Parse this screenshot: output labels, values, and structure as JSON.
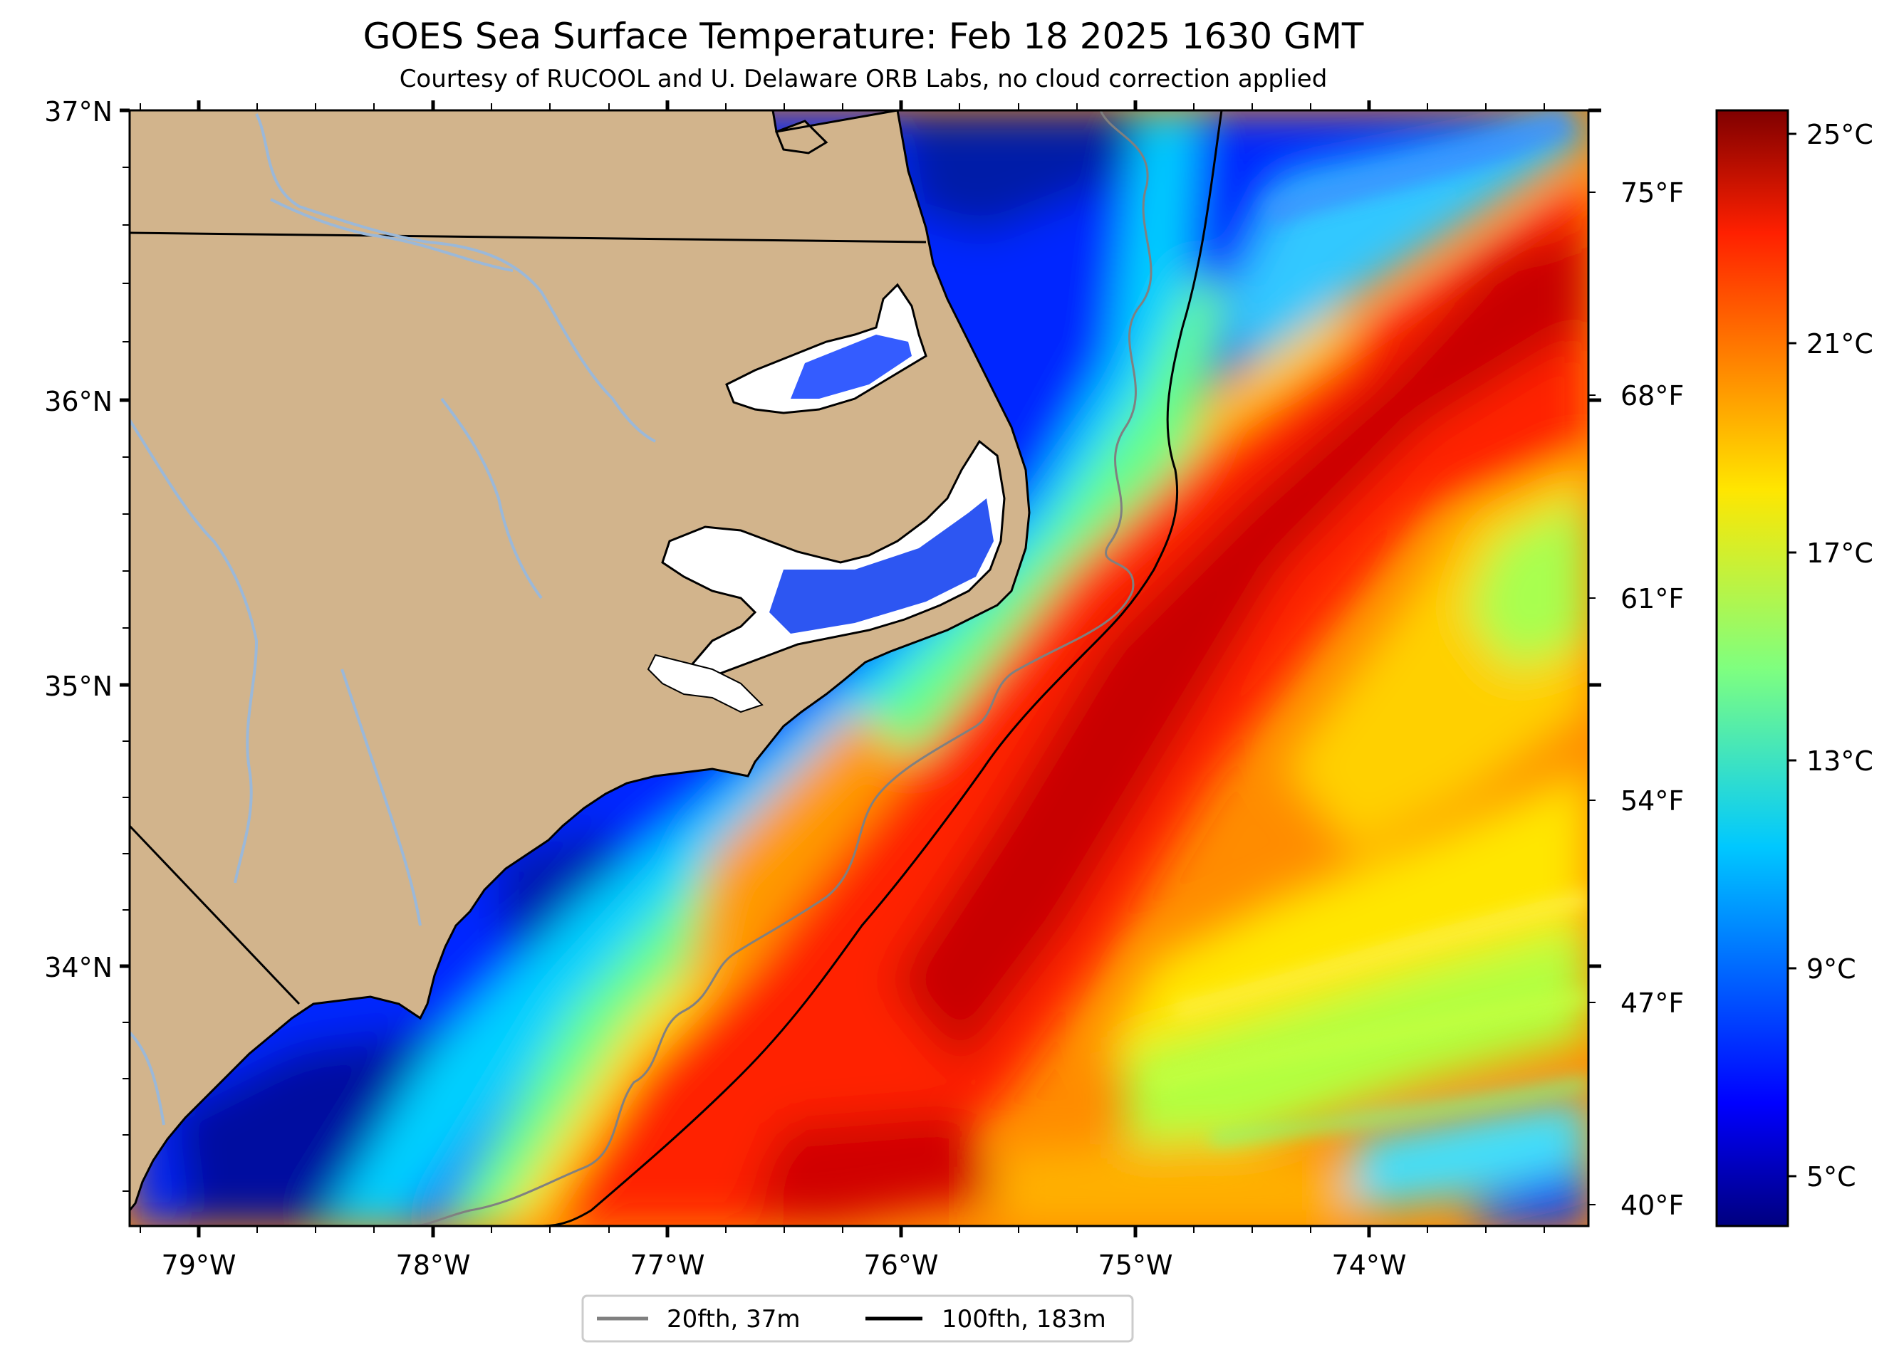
{
  "title": "GOES Sea Surface Temperature: Feb 18 2025 1630 GMT",
  "subtitle": "Courtesy of RUCOOL and U. Delaware ORB Labs, no cloud correction applied",
  "axes": {
    "lat_labels": [
      "37°N",
      "36°N",
      "35°N",
      "34°N"
    ],
    "lon_labels": [
      "79°W",
      "78°W",
      "77°W",
      "76°W",
      "75°W",
      "74°W"
    ],
    "lat_range": [
      33.1,
      37.0
    ],
    "lon_range": [
      -79.3,
      -73.1
    ]
  },
  "colorbar": {
    "celsius_labels": [
      "25°C",
      "21°C",
      "17°C",
      "13°C",
      "9°C",
      "5°C"
    ],
    "fahrenheit_labels": [
      "75°F",
      "68°F",
      "61°F",
      "54°F",
      "47°F",
      "40°F"
    ],
    "colormap": "jet",
    "range_c": [
      3.5,
      25.5
    ]
  },
  "legend": {
    "items": [
      {
        "label": "20fth, 37m",
        "color": "#808080"
      },
      {
        "label": "100fth, 183m",
        "color": "#000000"
      }
    ]
  },
  "colors": {
    "land": "#d2b48c",
    "rivers": "#9bb8d8",
    "coast": "#000000",
    "isobath_20fth": "#808080",
    "isobath_100fth": "#000000"
  }
}
